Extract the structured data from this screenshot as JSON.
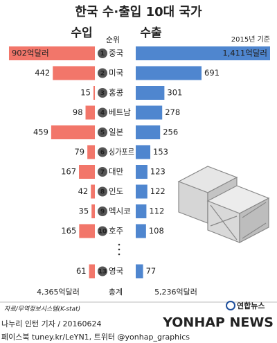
{
  "chart_data": {
    "type": "butterfly",
    "title": "한국 수·출입 10대 국가",
    "rank_label": "순위",
    "note": "2015년 기준",
    "ranks": [
      1,
      2,
      3,
      4,
      5,
      6,
      7,
      8,
      9,
      10,
      13
    ],
    "categories": [
      "중국",
      "미국",
      "홍콩",
      "베트남",
      "일본",
      "싱가포르",
      "대만",
      "인도",
      "멕시코",
      "호주",
      "영국"
    ],
    "series": [
      {
        "name": "수입",
        "color": "#f2766a",
        "values": [
          902,
          442,
          15,
          98,
          459,
          79,
          167,
          42,
          35,
          165,
          61
        ],
        "value_labels": [
          "902억달러",
          "442",
          "15",
          "98",
          "459",
          "79",
          "167",
          "42",
          "35",
          "165",
          "61"
        ]
      },
      {
        "name": "수출",
        "color": "#4f86cf",
        "values": [
          1411,
          691,
          301,
          278,
          256,
          153,
          123,
          122,
          112,
          108,
          77
        ],
        "value_labels": [
          "1,411억달러",
          "691",
          "301",
          "278",
          "256",
          "153",
          "123",
          "122",
          "112",
          "108",
          "77"
        ]
      }
    ],
    "total_label": "총계",
    "totals": [
      "4,365억달러",
      "5,236억달러"
    ],
    "source": "자료/무역정보시스템(K-stat)",
    "byline": "나누리 인턴 기자 / 20160624",
    "social": "페이스북 tuney.kr/LeYN1, 트위터 @yonhap_graphics",
    "logo": "연합뉴스",
    "watermark": "YONHAP NEWS"
  }
}
